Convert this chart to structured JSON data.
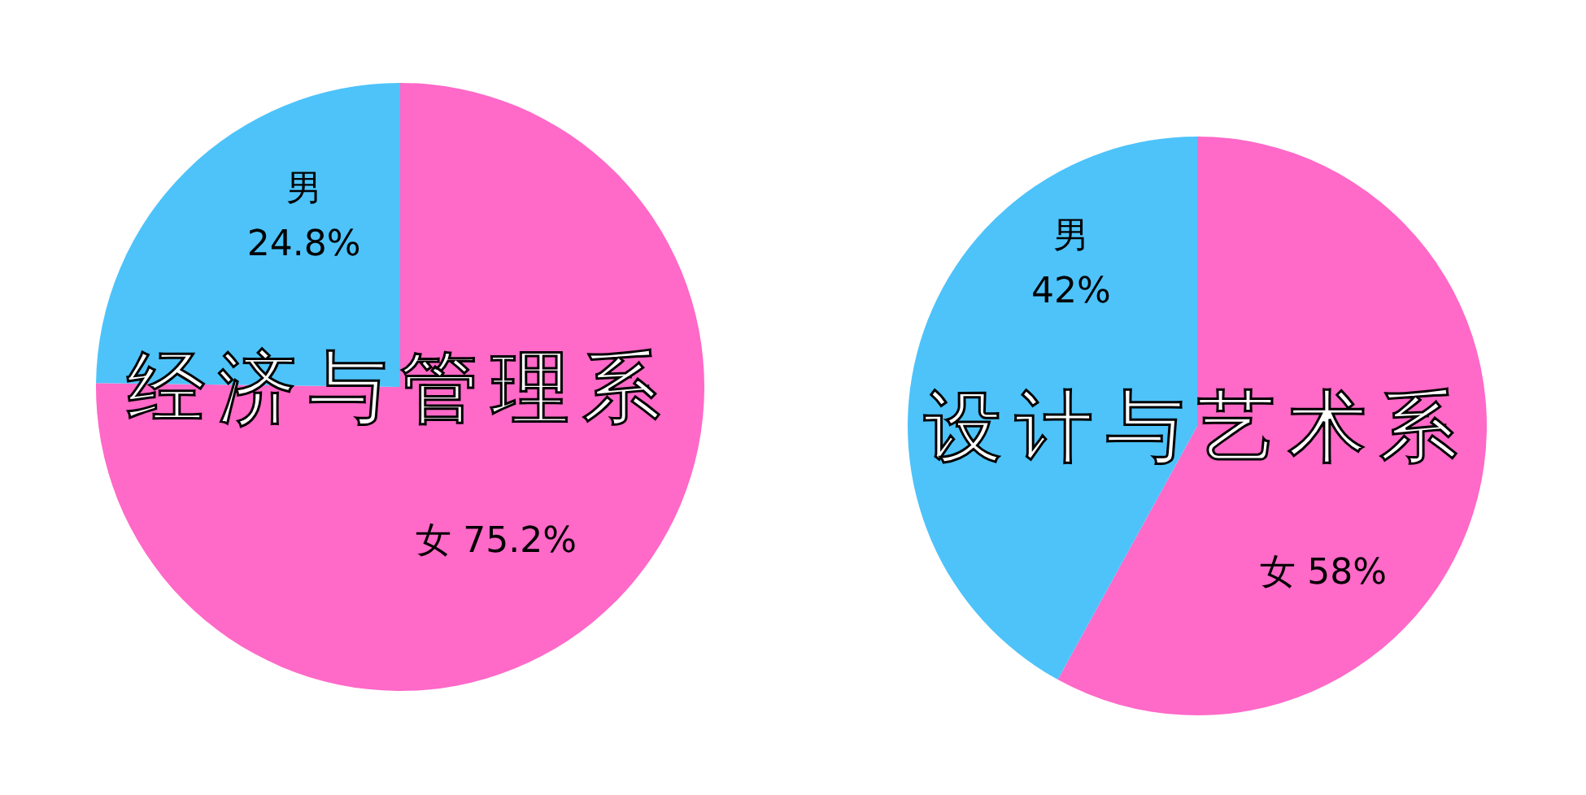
{
  "chart_data": [
    {
      "type": "pie",
      "title": "经济与管理系",
      "categories": [
        "女",
        "男"
      ],
      "values": [
        75.2,
        24.8
      ],
      "colors": [
        "#ff69c8",
        "#4dc3fa"
      ],
      "value_labels": [
        "75.2%",
        "24.8%"
      ]
    },
    {
      "type": "pie",
      "title": "设计与艺术系",
      "categories": [
        "女",
        "男"
      ],
      "values": [
        58,
        42
      ],
      "colors": [
        "#ff69c8",
        "#4dc3fa"
      ],
      "value_labels": [
        "58%",
        "42%"
      ]
    }
  ]
}
